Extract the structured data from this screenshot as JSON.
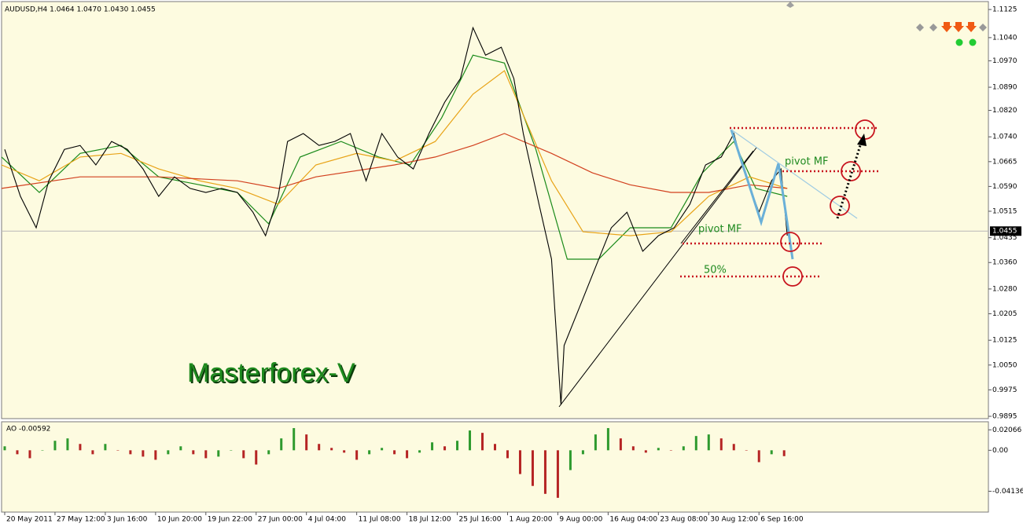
{
  "chart_data": {
    "type": "line",
    "title": "AUDUSD,H4  1.0464 1.0470 1.0430 1.0455",
    "xlim": [
      0,
      314
    ],
    "xticks": [
      {
        "value": 1,
        "label": "20 May 2011"
      },
      {
        "value": 17,
        "label": "27 May 12:00"
      },
      {
        "value": 33,
        "label": "3 Jun 16:00"
      },
      {
        "value": 49,
        "label": "10 Jun 20:00"
      },
      {
        "value": 65,
        "label": "19 Jun 22:00"
      },
      {
        "value": 81,
        "label": "27 Jun 00:00"
      },
      {
        "value": 97,
        "label": "4 Jul 04:00"
      },
      {
        "value": 113,
        "label": "11 Jul 08:00"
      },
      {
        "value": 129,
        "label": "18 Jul 12:00"
      },
      {
        "value": 145,
        "label": "25 Jul 16:00"
      },
      {
        "value": 161,
        "label": "1 Aug 20:00"
      },
      {
        "value": 177,
        "label": "9 Aug 00:00"
      },
      {
        "value": 193,
        "label": "16 Aug 04:00"
      },
      {
        "value": 209,
        "label": "23 Aug 08:00"
      },
      {
        "value": 225,
        "label": "30 Aug 12:00"
      },
      {
        "value": 241,
        "label": "6 Sep 16:00"
      }
    ],
    "ylim": [
      0.9888,
      1.1149
    ],
    "yticks": [
      1.1125,
      {
        "value": 1.104,
        "label": "1.1040"
      },
      {
        "value": 1.097,
        "label": "1.0970"
      },
      {
        "value": 1.089,
        "label": "1.0890"
      },
      {
        "value": 1.082,
        "label": "1.0820"
      },
      {
        "value": 1.074,
        "label": "1.0740"
      },
      1.0665,
      {
        "value": 1.059,
        "label": "1.0590"
      },
      1.0515,
      1.0435,
      {
        "value": 1.036,
        "label": "1.0360"
      },
      {
        "value": 1.028,
        "label": "1.0280"
      },
      1.0205,
      1.0125,
      {
        "value": 1.005,
        "label": "1.0050"
      },
      0.9975,
      0.9895
    ],
    "price": {
      "color": "#000000",
      "x": [
        1,
        6,
        11,
        15,
        20,
        25,
        30,
        35,
        40,
        45,
        50,
        55,
        60,
        65,
        70,
        75,
        80,
        84,
        88,
        91,
        96,
        101,
        106,
        111,
        116,
        121,
        126,
        131,
        136,
        141,
        146,
        150,
        154,
        159,
        163,
        166,
        171,
        175,
        178,
        179,
        184,
        189,
        194,
        199,
        204,
        209,
        214,
        219,
        224,
        229,
        233,
        236,
        241,
        245,
        248,
        250
      ],
      "values": [
        1.0702,
        1.056,
        1.0465,
        1.0607,
        1.0702,
        1.0714,
        1.0655,
        1.0726,
        1.0702,
        1.0643,
        1.056,
        1.0619,
        1.0584,
        1.0572,
        1.0584,
        1.0572,
        1.0512,
        1.0441,
        1.056,
        1.0726,
        1.075,
        1.0714,
        1.0726,
        1.075,
        1.0607,
        1.075,
        1.0679,
        1.0643,
        1.075,
        1.0845,
        1.0916,
        1.107,
        1.0987,
        1.1011,
        1.0916,
        1.075,
        1.0536,
        1.037,
        0.993,
        1.0109,
        1.0227,
        1.0346,
        1.0465,
        1.0512,
        1.0394,
        1.0441,
        1.0465,
        1.0536,
        1.0655,
        1.0679,
        1.075,
        1.0643,
        1.0512,
        1.0607,
        1.0643,
        1.0441
      ]
    },
    "series": [
      {
        "color": "#1a8a1a",
        "x": [
          0,
          12,
          25,
          38,
          50,
          63,
          75,
          85,
          95,
          108,
          120,
          130,
          140,
          150,
          160,
          170,
          180,
          190,
          200,
          213,
          223,
          233,
          240,
          250
        ],
        "values": [
          1.0679,
          1.0572,
          1.069,
          1.0714,
          1.0619,
          1.0595,
          1.0572,
          1.0477,
          1.0679,
          1.0726,
          1.0679,
          1.0655,
          1.0797,
          1.0987,
          1.0963,
          1.0702,
          1.037,
          1.037,
          1.0465,
          1.0465,
          1.0631,
          1.0726,
          1.0584,
          1.056
        ]
      },
      {
        "color": "#e8a317",
        "x": [
          0,
          12,
          25,
          38,
          50,
          63,
          75,
          88,
          100,
          113,
          125,
          138,
          150,
          160,
          175,
          185,
          200,
          213,
          225,
          238,
          250
        ],
        "values": [
          1.0655,
          1.0607,
          1.0679,
          1.069,
          1.0643,
          1.0607,
          1.0584,
          1.0536,
          1.0655,
          1.069,
          1.0667,
          1.0726,
          1.0869,
          1.094,
          1.0607,
          1.0453,
          1.0441,
          1.0453,
          1.056,
          1.0619,
          1.0584
        ]
      },
      {
        "color": "#d2401e",
        "x": [
          0,
          25,
          50,
          75,
          88,
          100,
          125,
          138,
          150,
          160,
          175,
          188,
          200,
          213,
          225,
          238,
          250
        ],
        "values": [
          1.0584,
          1.0619,
          1.0619,
          1.0607,
          1.0584,
          1.0619,
          1.0655,
          1.0679,
          1.0714,
          1.075,
          1.069,
          1.0631,
          1.0595,
          1.0572,
          1.0572,
          1.0595,
          1.0584
        ]
      }
    ],
    "last_price": 1.0455,
    "annotations": {
      "pivot_upper": "pivot MF",
      "pivot_lower": "pivot MF",
      "fifty": "50%",
      "brand": "Masterforex-V"
    },
    "ao": {
      "type": "bar",
      "label": "AO -0.00592",
      "up_color": "#2e9a2e",
      "down_color": "#b52424",
      "ylim": [
        -0.0624,
        0.0288
      ],
      "yticks": [
        0.02066,
        {
          "value": 0,
          "label": "0.00"
        },
        -0.04136
      ],
      "x": [
        1,
        5,
        9,
        13,
        17,
        21,
        25,
        29,
        33,
        37,
        41,
        45,
        49,
        53,
        57,
        61,
        65,
        69,
        73,
        77,
        81,
        85,
        89,
        93,
        97,
        101,
        105,
        109,
        113,
        117,
        121,
        125,
        129,
        133,
        137,
        141,
        145,
        149,
        153,
        157,
        161,
        165,
        169,
        173,
        177,
        181,
        185,
        189,
        193,
        197,
        201,
        205,
        209,
        213,
        217,
        221,
        225,
        229,
        233,
        237,
        241,
        245,
        249
      ],
      "values": [
        0.004,
        -0.004,
        -0.008,
        0,
        0.0096,
        0.012,
        0.0064,
        -0.004,
        0.0064,
        0,
        -0.004,
        -0.0064,
        -0.0096,
        -0.004,
        0.004,
        -0.004,
        -0.008,
        -0.0064,
        0,
        -0.008,
        -0.0144,
        -0.004,
        0.012,
        0.0224,
        0.016,
        0.0064,
        0.0024,
        -0.0024,
        -0.0096,
        -0.004,
        0.0024,
        -0.004,
        -0.008,
        -0.0024,
        0.008,
        0.004,
        0.0096,
        0.02,
        0.0176,
        0.0064,
        -0.008,
        -0.024,
        -0.036,
        -0.044,
        -0.048,
        -0.02,
        -0.004,
        0.016,
        0.0224,
        0.012,
        0.004,
        -0.0024,
        0.0024,
        0,
        0.004,
        0.0144,
        0.016,
        0.012,
        0.0064,
        0,
        -0.012,
        -0.004,
        -0.00592
      ]
    }
  }
}
